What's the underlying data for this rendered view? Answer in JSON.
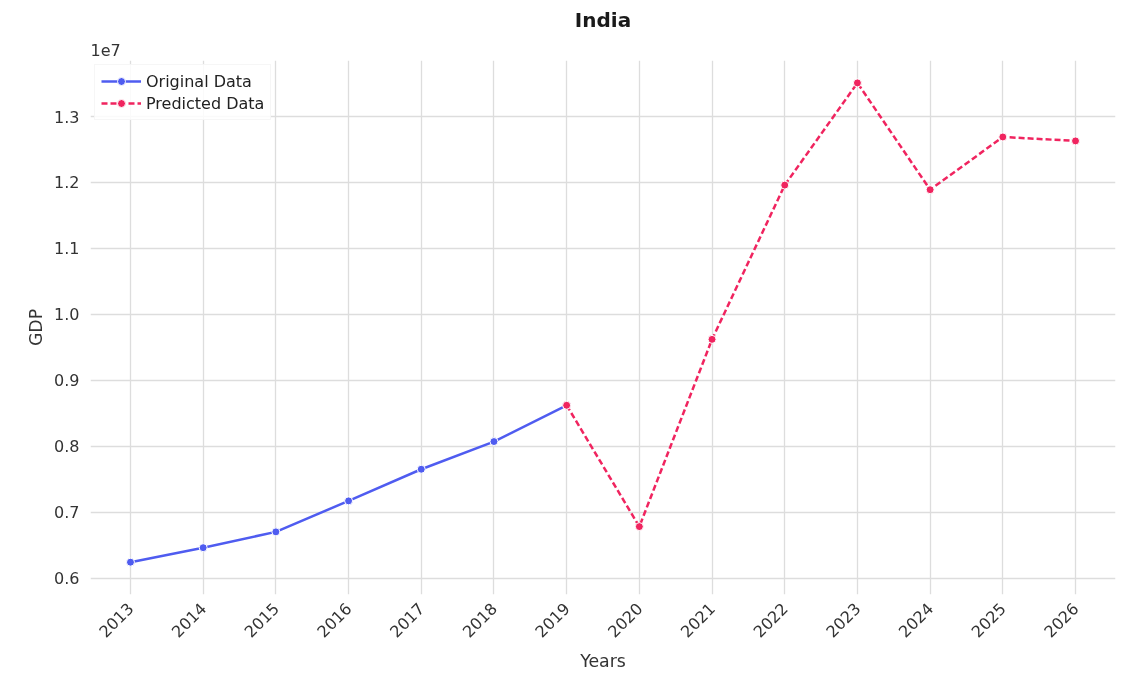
{
  "chart_data": {
    "type": "line",
    "title": "India",
    "xlabel": "Years",
    "ylabel": "GDP",
    "annotations": [
      "1e7"
    ],
    "series": [
      {
        "name": "Original Data",
        "color": "#4f5cf0",
        "line_style": "solid",
        "x": [
          2013,
          2014,
          2015,
          2016,
          2017,
          2018,
          2019
        ],
        "values": [
          0.624,
          0.646,
          0.67,
          0.717,
          0.765,
          0.807,
          0.862
        ]
      },
      {
        "name": "Predicted Data",
        "color": "#f0245f",
        "line_style": "dashed",
        "x": [
          2019,
          2020,
          2021,
          2022,
          2023,
          2024,
          2025,
          2026
        ],
        "values": [
          0.862,
          0.678,
          0.962,
          1.196,
          1.351,
          1.189,
          1.269,
          1.263
        ]
      }
    ],
    "xlim": [
      2012.45,
      2026.55
    ],
    "ylim": [
      0.575,
      1.385
    ],
    "xticks": [
      2013,
      2014,
      2015,
      2016,
      2017,
      2018,
      2019,
      2020,
      2021,
      2022,
      2023,
      2024,
      2025,
      2026
    ],
    "yticks": [
      0.6,
      0.7,
      0.8,
      0.9,
      {
        "value": 1.0,
        "label": "1.0"
      },
      1.1,
      1.2,
      1.3
    ],
    "grid": true,
    "legend": "top left",
    "marker": "circle"
  }
}
